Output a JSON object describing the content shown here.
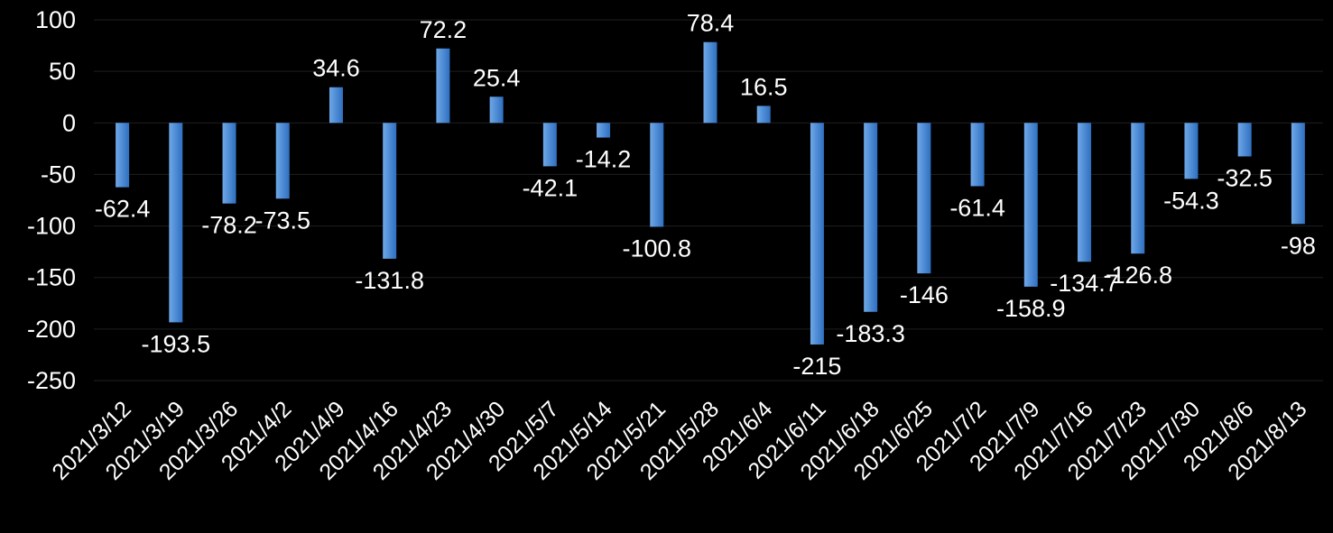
{
  "colors": {
    "background": "#000000",
    "bar_top": "#6fa8e8",
    "bar_bottom": "#2e6fc0",
    "text": "#ffffff",
    "gridline": "#1f1f1f"
  },
  "chart_data": {
    "type": "bar",
    "title": "",
    "xlabel": "",
    "ylabel": "",
    "ylim": [
      -250,
      100
    ],
    "yticks": [
      "100",
      "50",
      "0",
      "-50",
      "-100",
      "-150",
      "-200",
      "-250"
    ],
    "grid": true,
    "legend": "none",
    "categories": [
      "2021/3/12",
      "2021/3/19",
      "2021/3/26",
      "2021/4/2",
      "2021/4/9",
      "2021/4/16",
      "2021/4/23",
      "2021/4/30",
      "2021/5/7",
      "2021/5/14",
      "2021/5/21",
      "2021/5/28",
      "2021/6/4",
      "2021/6/11",
      "2021/6/18",
      "2021/6/25",
      "2021/7/2",
      "2021/7/9",
      "2021/7/16",
      "2021/7/23",
      "2021/7/30",
      "2021/8/6",
      "2021/8/13"
    ],
    "values": [
      -62.4,
      -193.5,
      -78.2,
      -73.5,
      34.6,
      -131.8,
      72.2,
      25.4,
      -42.1,
      -14.2,
      -100.8,
      78.4,
      16.5,
      -215,
      -183.3,
      -146,
      -61.4,
      -158.9,
      -134.7,
      -126.8,
      -54.3,
      -32.5,
      -98
    ],
    "value_labels": [
      "-62.4",
      "-193.5",
      "-78.2",
      "-73.5",
      "34.6",
      "-131.8",
      "72.2",
      "25.4",
      "-42.1",
      "-14.2",
      "-100.8",
      "78.4",
      "16.5",
      "-215",
      "-183.3",
      "-146",
      "-61.4",
      "-158.9",
      "-134.7",
      "-126.8",
      "-54.3",
      "-32.5",
      "-98"
    ]
  }
}
